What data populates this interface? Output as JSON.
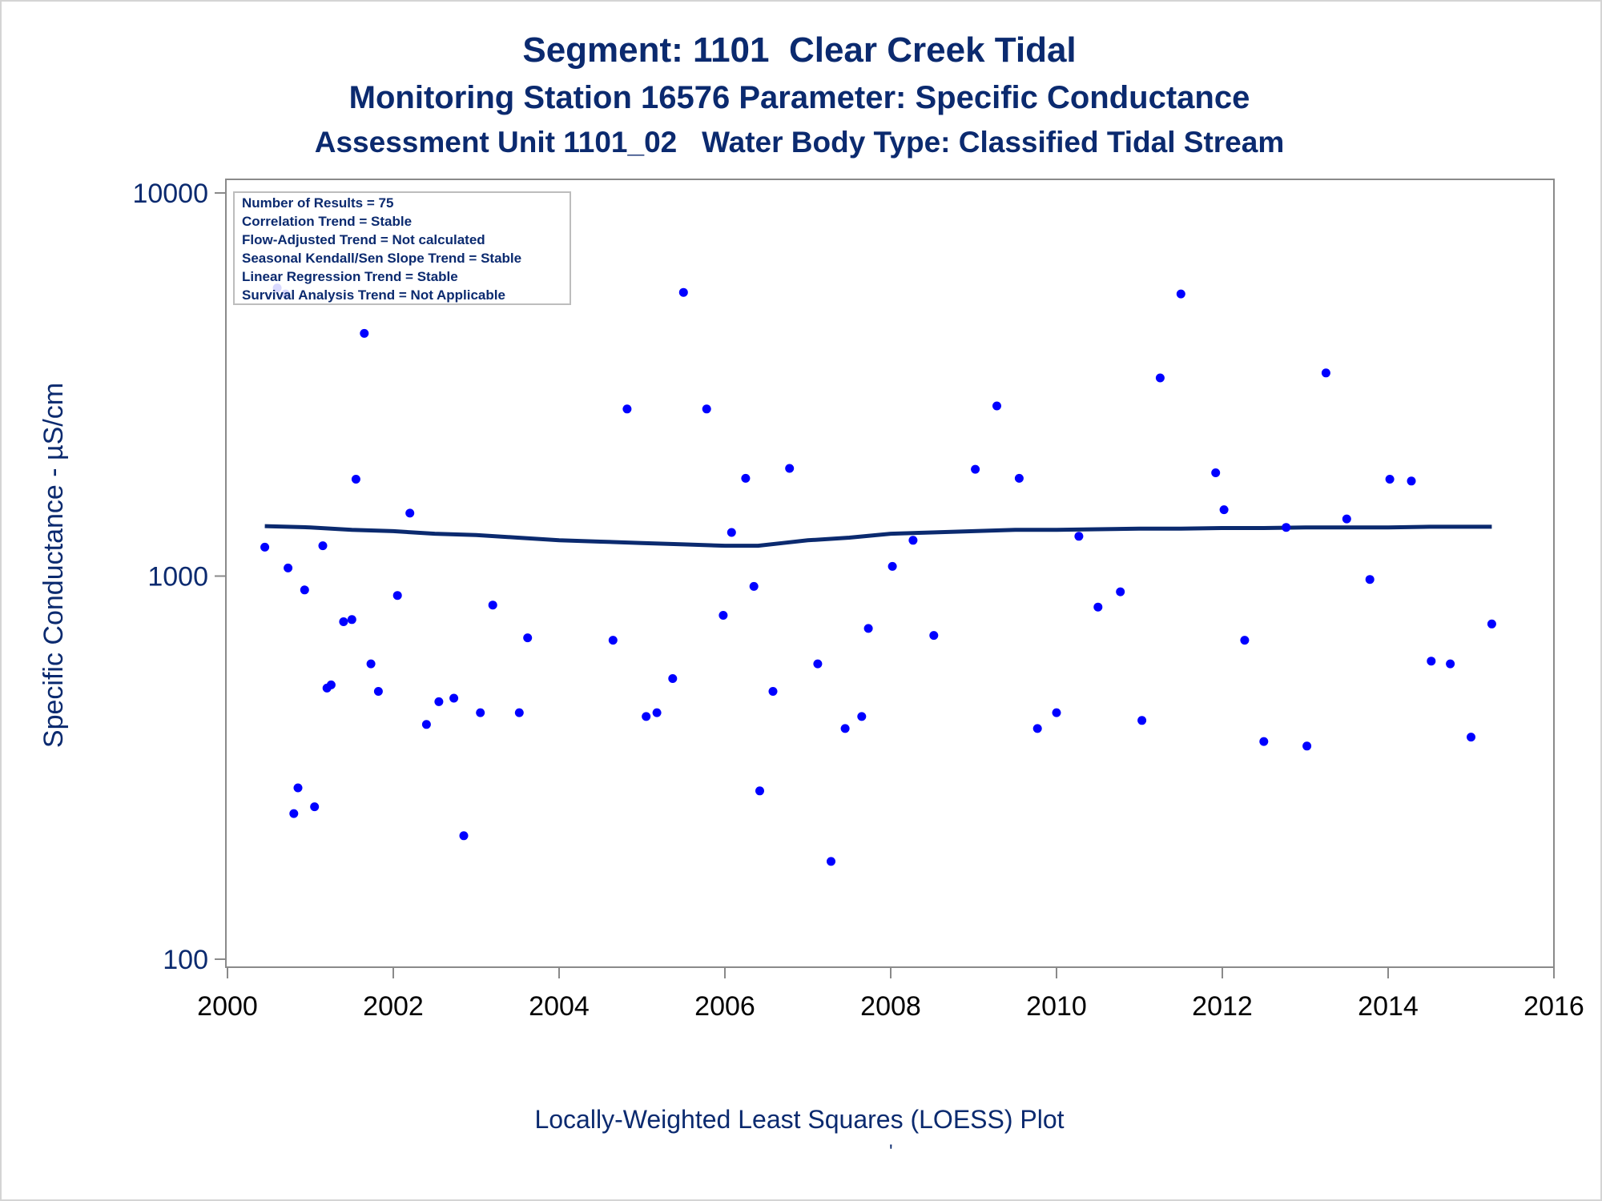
{
  "titles": {
    "line1": "Segment: 1101  Clear Creek Tidal",
    "line2": "Monitoring Station 16576 Parameter: Specific Conductance",
    "line3": "Assessment Unit 1101_02   Water Body Type: Classified Tidal Stream"
  },
  "footnote": "Locally-Weighted Least Squares (LOESS) Plot",
  "footmark": "'",
  "chart_data": {
    "type": "scatter",
    "ylabel": "Specific Conductance -  µS/cm",
    "xlabel": "",
    "y_scale": "log",
    "xlim": [
      2000,
      2016
    ],
    "ylim": [
      100,
      10000
    ],
    "x_ticks": [
      2000,
      2002,
      2004,
      2006,
      2008,
      2010,
      2012,
      2014,
      2016
    ],
    "y_ticks": [
      100,
      1000,
      10000
    ],
    "colors": {
      "points": "#0000ff",
      "loess": "#0b2a6f",
      "text": "#0b2a6f",
      "axis": "#8a8a8a"
    },
    "stats_box": [
      "Number of Results = 75",
      "Correlation Trend = Stable",
      "Flow-Adjusted Trend = Not calculated",
      "Seasonal Kendall/Sen Slope Trend = Stable",
      "Linear Regression Trend = Stable",
      "Survival Analysis Trend = Not Applicable"
    ],
    "points": [
      [
        2000.45,
        1190
      ],
      [
        2000.6,
        5650
      ],
      [
        2000.7,
        5450
      ],
      [
        2000.73,
        1050
      ],
      [
        2000.8,
        240
      ],
      [
        2000.85,
        280
      ],
      [
        2000.93,
        920
      ],
      [
        2001.05,
        250
      ],
      [
        2001.15,
        1200
      ],
      [
        2001.2,
        510
      ],
      [
        2001.25,
        520
      ],
      [
        2001.4,
        760
      ],
      [
        2001.5,
        770
      ],
      [
        2001.55,
        1790
      ],
      [
        2001.65,
        4300
      ],
      [
        2001.73,
        590
      ],
      [
        2001.82,
        500
      ],
      [
        2002.05,
        890
      ],
      [
        2002.2,
        1460
      ],
      [
        2002.4,
        410
      ],
      [
        2002.55,
        470
      ],
      [
        2002.73,
        480
      ],
      [
        2002.85,
        210
      ],
      [
        2003.05,
        440
      ],
      [
        2003.2,
        840
      ],
      [
        2003.52,
        440
      ],
      [
        2003.62,
        690
      ],
      [
        2004.65,
        680
      ],
      [
        2004.82,
        2730
      ],
      [
        2005.05,
        430
      ],
      [
        2005.18,
        440
      ],
      [
        2005.37,
        540
      ],
      [
        2005.5,
        5500
      ],
      [
        2005.78,
        2730
      ],
      [
        2005.98,
        790
      ],
      [
        2006.08,
        1300
      ],
      [
        2006.25,
        1800
      ],
      [
        2006.35,
        940
      ],
      [
        2006.42,
        275
      ],
      [
        2006.58,
        500
      ],
      [
        2006.78,
        1910
      ],
      [
        2007.12,
        590
      ],
      [
        2007.28,
        180
      ],
      [
        2007.45,
        400
      ],
      [
        2007.65,
        430
      ],
      [
        2007.73,
        730
      ],
      [
        2008.02,
        1060
      ],
      [
        2008.27,
        1240
      ],
      [
        2008.52,
        700
      ],
      [
        2009.02,
        1900
      ],
      [
        2009.28,
        2780
      ],
      [
        2009.55,
        1800
      ],
      [
        2009.77,
        400
      ],
      [
        2010.0,
        440
      ],
      [
        2010.27,
        1270
      ],
      [
        2010.5,
        830
      ],
      [
        2010.77,
        910
      ],
      [
        2011.03,
        420
      ],
      [
        2011.25,
        3290
      ],
      [
        2011.5,
        5450
      ],
      [
        2011.92,
        1860
      ],
      [
        2012.02,
        1490
      ],
      [
        2012.27,
        680
      ],
      [
        2012.5,
        370
      ],
      [
        2012.77,
        1340
      ],
      [
        2013.02,
        360
      ],
      [
        2013.25,
        3390
      ],
      [
        2013.5,
        1410
      ],
      [
        2013.78,
        980
      ],
      [
        2014.02,
        1790
      ],
      [
        2014.28,
        1770
      ],
      [
        2014.52,
        600
      ],
      [
        2014.75,
        590
      ],
      [
        2015.0,
        380
      ],
      [
        2015.25,
        750
      ]
    ],
    "loess": [
      [
        2000.45,
        1350
      ],
      [
        2001.0,
        1340
      ],
      [
        2001.5,
        1320
      ],
      [
        2002.0,
        1310
      ],
      [
        2002.5,
        1290
      ],
      [
        2003.0,
        1280
      ],
      [
        2003.5,
        1260
      ],
      [
        2004.0,
        1240
      ],
      [
        2004.5,
        1230
      ],
      [
        2005.0,
        1220
      ],
      [
        2005.5,
        1210
      ],
      [
        2006.0,
        1200
      ],
      [
        2006.4,
        1200
      ],
      [
        2006.7,
        1220
      ],
      [
        2007.0,
        1240
      ],
      [
        2007.5,
        1260
      ],
      [
        2008.0,
        1290
      ],
      [
        2008.5,
        1300
      ],
      [
        2009.0,
        1310
      ],
      [
        2009.5,
        1320
      ],
      [
        2010.0,
        1320
      ],
      [
        2010.5,
        1325
      ],
      [
        2011.0,
        1330
      ],
      [
        2011.5,
        1330
      ],
      [
        2012.0,
        1335
      ],
      [
        2012.5,
        1335
      ],
      [
        2013.0,
        1340
      ],
      [
        2013.5,
        1340
      ],
      [
        2014.0,
        1340
      ],
      [
        2014.5,
        1345
      ],
      [
        2015.25,
        1345
      ]
    ]
  }
}
